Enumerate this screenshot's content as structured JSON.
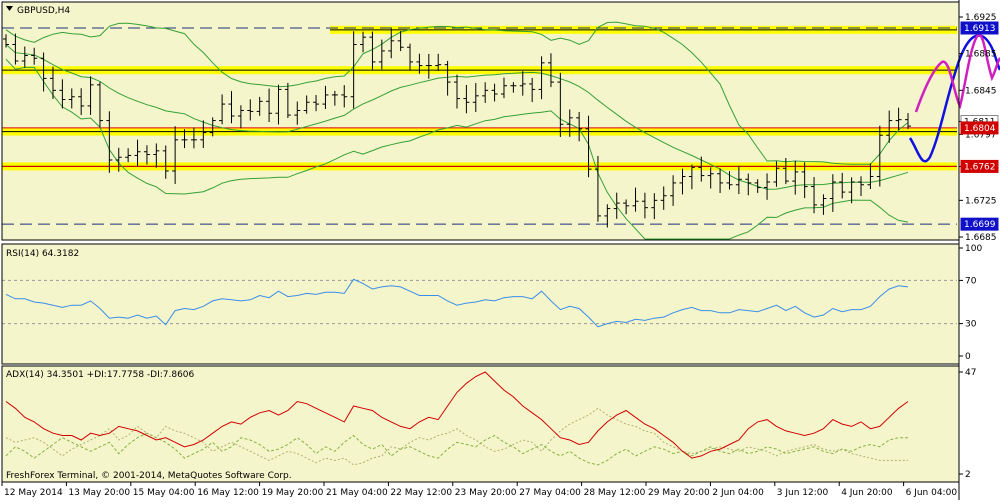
{
  "symbol_title": "GBPUSD,H4",
  "copyright": "FreshForex Terminal, © 2001-2014, MetaQuotes Software Corp.",
  "colors": {
    "background": "#F5F5CC",
    "candle": "#000000",
    "bollinger": "#35A035",
    "support_band": "#FFFF00",
    "red_line": "#E00000",
    "dashed_line": "#1E2E7A",
    "forecast_blue": "#1010E0",
    "forecast_magenta": "#D020C0",
    "rsi_line": "#3A8EE8",
    "adx_line": "#D00000",
    "plus_di": "#8AB040",
    "minus_di": "#B0B070",
    "price_tag_blue": "#1010C8",
    "price_tag_red": "#D00000"
  },
  "chart_data": [
    {
      "type": "candlestick",
      "title": "GBPUSD,H4",
      "ylim": [
        1.6685,
        1.6925
      ],
      "y_ticks": [
        "1.6925",
        "1.6885",
        "1.6845",
        "1.6811",
        "1.6797",
        "1.6762",
        "1.6725",
        "1.6685"
      ],
      "x_labels": [
        "12 May 2014",
        "13 May 20:00",
        "15 May 04:00",
        "16 May 12:00",
        "19 May 20:00",
        "21 May 04:00",
        "22 May 12:00",
        "23 May 20:00",
        "27 May 04:00",
        "28 May 12:00",
        "29 May 20:00",
        "2 Jun 04:00",
        "3 Jun 12:00",
        "4 Jun 20:00",
        "6 Jun 04:00"
      ],
      "close": [
        1.6895,
        1.6877,
        1.6883,
        1.688,
        1.6858,
        1.6845,
        1.6835,
        1.6838,
        1.6828,
        1.6851,
        1.6812,
        1.6769,
        1.6772,
        1.6774,
        1.6778,
        1.6775,
        1.6779,
        1.6757,
        1.6791,
        1.6791,
        1.6791,
        1.6799,
        1.6812,
        1.683,
        1.6817,
        1.6823,
        1.6822,
        1.6833,
        1.682,
        1.6846,
        1.6818,
        1.6823,
        1.6832,
        1.683,
        1.684,
        1.684,
        1.6838,
        1.6895,
        1.6903,
        1.6876,
        1.6888,
        1.6899,
        1.6892,
        1.6876,
        1.6872,
        1.6872,
        1.6873,
        1.6854,
        1.6836,
        1.6832,
        1.6839,
        1.6845,
        1.6841,
        1.685,
        1.685,
        1.6852,
        1.6846,
        1.6875,
        1.6854,
        1.6808,
        1.6815,
        1.6803,
        1.6759,
        1.6708,
        1.6716,
        1.6722,
        1.6719,
        1.6724,
        1.6717,
        1.6725,
        1.673,
        1.6744,
        1.6751,
        1.6761,
        1.6752,
        1.6754,
        1.6744,
        1.6742,
        1.6748,
        1.6744,
        1.6739,
        1.6745,
        1.676,
        1.6746,
        1.6756,
        1.674,
        1.672,
        1.6727,
        1.6745,
        1.6734,
        1.6745,
        1.6742,
        1.6751,
        1.6796,
        1.6812,
        1.6813,
        1.6806
      ],
      "resistance_zones": [
        1.6911,
        1.6867,
        1.68,
        1.6762
      ],
      "dashed_levels": [
        1.6913,
        1.6699
      ],
      "red_levels": [
        1.6804,
        1.6762
      ],
      "price_tags": [
        {
          "text": "1.6913",
          "color": "blue"
        },
        {
          "text": "1.6811",
          "color": "white"
        },
        {
          "text": "1.6804",
          "color": "red"
        },
        {
          "text": "1.6762",
          "color": "red"
        },
        {
          "text": "1.6699",
          "color": "blue"
        }
      ]
    },
    {
      "type": "line",
      "title": "RSI(14) 64.3182",
      "ylim": [
        0,
        100
      ],
      "y_ticks": [
        "100",
        "70",
        "30",
        "0"
      ],
      "levels": [
        70,
        30
      ],
      "series": [
        {
          "name": "RSI(14)",
          "values": [
            57,
            53,
            53,
            50,
            49,
            47,
            45,
            47,
            47,
            51,
            44,
            35,
            36,
            35,
            38,
            35,
            37,
            29,
            42,
            44,
            43,
            46,
            51,
            53,
            52,
            51,
            52,
            56,
            54,
            60,
            55,
            56,
            58,
            57,
            59,
            59,
            58,
            71,
            67,
            62,
            64,
            65,
            64,
            60,
            56,
            56,
            56,
            51,
            47,
            49,
            50,
            52,
            51,
            54,
            55,
            55,
            53,
            60,
            51,
            43,
            46,
            44,
            36,
            27,
            30,
            32,
            31,
            34,
            33,
            35,
            36,
            40,
            43,
            45,
            42,
            42,
            40,
            40,
            43,
            42,
            41,
            44,
            47,
            42,
            46,
            40,
            36,
            38,
            44,
            41,
            43,
            43,
            46,
            55,
            62,
            65,
            64
          ]
        }
      ]
    },
    {
      "type": "line",
      "title": "ADX(14) 34.3501 +DI:17.7758 -DI:7.8606",
      "y_ticks": [
        "47",
        "2"
      ],
      "series": [
        {
          "name": "ADX(14)",
          "values": [
            34,
            31,
            27,
            25,
            22,
            20,
            19,
            19,
            17,
            20,
            19,
            20,
            23,
            22,
            21,
            19,
            17,
            18,
            16,
            14,
            15,
            17,
            20,
            23,
            25,
            24,
            27,
            29,
            30,
            28,
            30,
            34,
            33,
            31,
            29,
            27,
            25,
            32,
            31,
            30,
            27,
            25,
            23,
            22,
            25,
            27,
            26,
            32,
            38,
            42,
            45,
            47,
            43,
            39,
            36,
            32,
            29,
            26,
            22,
            18,
            17,
            15,
            16,
            21,
            25,
            28,
            30,
            27,
            24,
            22,
            19,
            16,
            12,
            9,
            10,
            12,
            13,
            15,
            17,
            22,
            25,
            26,
            23,
            21,
            20,
            19,
            20,
            22,
            26,
            24,
            23,
            25,
            22,
            23,
            27,
            31,
            34
          ]
        },
        {
          "name": "+DI",
          "values": [
            10,
            14,
            12,
            9,
            12,
            15,
            18,
            16,
            14,
            12,
            14,
            16,
            11,
            15,
            18,
            20,
            18,
            16,
            13,
            9,
            11,
            13,
            16,
            12,
            14,
            18,
            17,
            15,
            12,
            13,
            15,
            18,
            15,
            11,
            14,
            12,
            16,
            19,
            15,
            13,
            15,
            10,
            13,
            14,
            12,
            10,
            9,
            13,
            16,
            15,
            14,
            17,
            19,
            16,
            14,
            11,
            13,
            15,
            12,
            10,
            12,
            9,
            7,
            6,
            8,
            11,
            13,
            10,
            12,
            14,
            13,
            11,
            12,
            10,
            12,
            14,
            12,
            11,
            13,
            11,
            12,
            14,
            13,
            11,
            12,
            13,
            14,
            12,
            11,
            13,
            12,
            14,
            15,
            14,
            17,
            18,
            18
          ]
        },
        {
          "name": "-DI",
          "values": [
            18,
            16,
            17,
            18,
            16,
            13,
            10,
            13,
            15,
            17,
            19,
            22,
            17,
            19,
            23,
            20,
            18,
            23,
            21,
            20,
            18,
            16,
            12,
            14,
            16,
            14,
            12,
            10,
            8,
            10,
            12,
            11,
            9,
            7,
            9,
            8,
            9,
            6,
            7,
            9,
            10,
            14,
            13,
            16,
            18,
            17,
            19,
            20,
            22,
            19,
            17,
            14,
            12,
            13,
            15,
            17,
            16,
            12,
            17,
            21,
            24,
            26,
            28,
            31,
            28,
            26,
            24,
            23,
            21,
            20,
            16,
            14,
            12,
            11,
            12,
            13,
            14,
            13,
            12,
            14,
            13,
            12,
            10,
            12,
            13,
            14,
            15,
            13,
            12,
            13,
            11,
            10,
            9,
            8,
            8,
            8,
            8
          ]
        }
      ]
    }
  ]
}
